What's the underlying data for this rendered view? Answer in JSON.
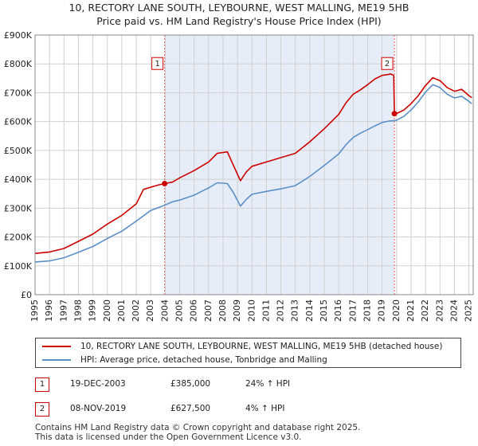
{
  "chart_data": {
    "type": "line",
    "title": "10, RECTORY LANE SOUTH, LEYBOURNE, WEST MALLING, ME19 5HB",
    "subtitle": "Price paid vs. HM Land Registry's House Price Index (HPI)",
    "xlabel": "",
    "ylabel": "",
    "xlim": [
      1995,
      2025.3
    ],
    "ylim": [
      0,
      900000
    ],
    "y_ticks": [
      0,
      100000,
      200000,
      300000,
      400000,
      500000,
      600000,
      700000,
      800000,
      900000
    ],
    "y_tick_labels": [
      "£0",
      "£100K",
      "£200K",
      "£300K",
      "£400K",
      "£500K",
      "£600K",
      "£700K",
      "£800K",
      "£900K"
    ],
    "x_ticks": [
      1995,
      1996,
      1997,
      1998,
      1999,
      2000,
      2001,
      2002,
      2003,
      2004,
      2005,
      2006,
      2007,
      2008,
      2009,
      2010,
      2011,
      2012,
      2013,
      2014,
      2015,
      2016,
      2017,
      2018,
      2019,
      2020,
      2021,
      2022,
      2023,
      2024,
      2025
    ],
    "x_tick_labels": [
      "1995",
      "1996",
      "1997",
      "1998",
      "1999",
      "2000",
      "2001",
      "2002",
      "2003",
      "2004",
      "2005",
      "2006",
      "2007",
      "2008",
      "2009",
      "2010",
      "2011",
      "2012",
      "2013",
      "2014",
      "2015",
      "2016",
      "2017",
      "2018",
      "2019",
      "2020",
      "2021",
      "2022",
      "2023",
      "2024",
      "2025"
    ],
    "grid": true,
    "shaded_period": [
      2003.96,
      2019.85
    ],
    "series": [
      {
        "name": "10, RECTORY LANE SOUTH, LEYBOURNE, WEST MALLING, ME19 5HB (detached house)",
        "color": "#cc0000",
        "points": [
          [
            1995.0,
            143000
          ],
          [
            1996.0,
            148000
          ],
          [
            1997.0,
            160000
          ],
          [
            1998.0,
            185000
          ],
          [
            1999.0,
            210000
          ],
          [
            2000.0,
            245000
          ],
          [
            2001.0,
            275000
          ],
          [
            2002.0,
            315000
          ],
          [
            2002.5,
            365000
          ],
          [
            2003.5,
            380000
          ],
          [
            2003.96,
            385000
          ],
          [
            2004.5,
            390000
          ],
          [
            2005.0,
            405000
          ],
          [
            2006.0,
            430000
          ],
          [
            2007.0,
            460000
          ],
          [
            2007.6,
            490000
          ],
          [
            2008.3,
            495000
          ],
          [
            2008.7,
            450000
          ],
          [
            2009.2,
            395000
          ],
          [
            2009.6,
            425000
          ],
          [
            2010.0,
            445000
          ],
          [
            2011.0,
            460000
          ],
          [
            2012.0,
            475000
          ],
          [
            2013.0,
            490000
          ],
          [
            2014.0,
            530000
          ],
          [
            2015.0,
            575000
          ],
          [
            2016.0,
            625000
          ],
          [
            2016.5,
            665000
          ],
          [
            2017.0,
            695000
          ],
          [
            2017.5,
            710000
          ],
          [
            2018.0,
            728000
          ],
          [
            2018.5,
            748000
          ],
          [
            2019.0,
            760000
          ],
          [
            2019.6,
            765000
          ],
          [
            2019.8,
            760000
          ],
          [
            2019.85,
            627500
          ],
          [
            2020.0,
            628000
          ],
          [
            2020.5,
            640000
          ],
          [
            2021.0,
            662000
          ],
          [
            2021.5,
            690000
          ],
          [
            2022.0,
            725000
          ],
          [
            2022.5,
            752000
          ],
          [
            2023.0,
            742000
          ],
          [
            2023.5,
            718000
          ],
          [
            2024.0,
            705000
          ],
          [
            2024.5,
            712000
          ],
          [
            2025.0,
            690000
          ],
          [
            2025.2,
            683000
          ]
        ]
      },
      {
        "name": "HPI: Average price, detached house, Tonbridge and Malling",
        "color": "#5b8fc7",
        "points": [
          [
            1995.0,
            113000
          ],
          [
            1996.0,
            117000
          ],
          [
            1997.0,
            128000
          ],
          [
            1998.0,
            147000
          ],
          [
            1999.0,
            167000
          ],
          [
            2000.0,
            195000
          ],
          [
            2001.0,
            220000
          ],
          [
            2002.0,
            255000
          ],
          [
            2003.0,
            292000
          ],
          [
            2003.96,
            310000
          ],
          [
            2004.5,
            322000
          ],
          [
            2005.0,
            328000
          ],
          [
            2006.0,
            345000
          ],
          [
            2007.0,
            370000
          ],
          [
            2007.6,
            388000
          ],
          [
            2008.3,
            385000
          ],
          [
            2008.7,
            355000
          ],
          [
            2009.2,
            307000
          ],
          [
            2009.6,
            330000
          ],
          [
            2010.0,
            348000
          ],
          [
            2011.0,
            358000
          ],
          [
            2012.0,
            367000
          ],
          [
            2013.0,
            378000
          ],
          [
            2014.0,
            410000
          ],
          [
            2015.0,
            448000
          ],
          [
            2016.0,
            488000
          ],
          [
            2016.5,
            520000
          ],
          [
            2017.0,
            545000
          ],
          [
            2017.5,
            560000
          ],
          [
            2018.0,
            572000
          ],
          [
            2018.5,
            585000
          ],
          [
            2019.0,
            597000
          ],
          [
            2019.5,
            602000
          ],
          [
            2019.85,
            603000
          ],
          [
            2020.0,
            605000
          ],
          [
            2020.5,
            618000
          ],
          [
            2021.0,
            640000
          ],
          [
            2021.5,
            668000
          ],
          [
            2022.0,
            702000
          ],
          [
            2022.5,
            728000
          ],
          [
            2023.0,
            718000
          ],
          [
            2023.5,
            695000
          ],
          [
            2024.0,
            682000
          ],
          [
            2024.5,
            688000
          ],
          [
            2025.0,
            670000
          ],
          [
            2025.2,
            662000
          ]
        ]
      }
    ],
    "annotations": [
      {
        "label": "1",
        "x": 2003.96,
        "y": 385000,
        "box_y": 800000
      },
      {
        "label": "2",
        "x": 2019.85,
        "y": 627500,
        "box_y": 800000
      }
    ]
  },
  "legend": {
    "entries": [
      {
        "label": "10, RECTORY LANE SOUTH, LEYBOURNE, WEST MALLING, ME19 5HB (detached house)",
        "color": "#cc0000"
      },
      {
        "label": "HPI: Average price, detached house, Tonbridge and Malling",
        "color": "#5b8fc7"
      }
    ]
  },
  "transactions": [
    {
      "num": "1",
      "date": "19-DEC-2003",
      "price": "£385,000",
      "hpi": "24% ↑ HPI"
    },
    {
      "num": "2",
      "date": "08-NOV-2019",
      "price": "£627,500",
      "hpi": "4% ↑ HPI"
    }
  ],
  "footer": {
    "line1": "Contains HM Land Registry data © Crown copyright and database right 2025.",
    "line2": "This data is licensed under the Open Government Licence v3.0."
  }
}
